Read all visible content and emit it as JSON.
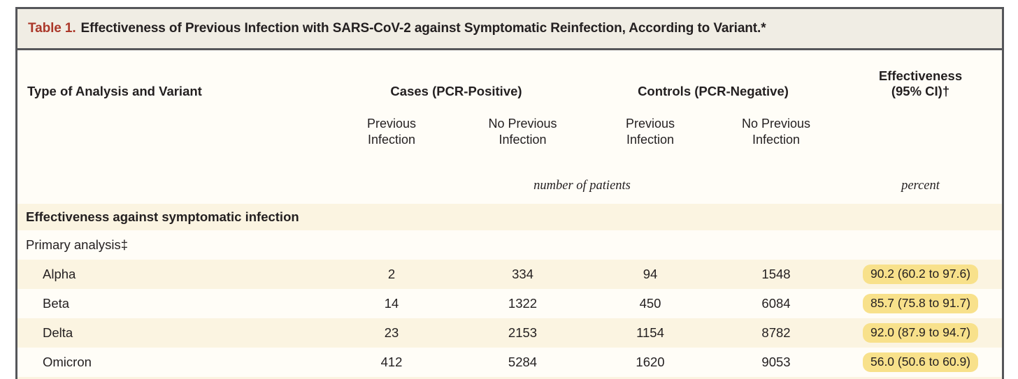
{
  "title": {
    "label": "Table 1.",
    "text": "Effectiveness of Previous Infection with SARS-CoV-2 against Symptomatic Reinfection, According to Variant.*"
  },
  "columns": {
    "analysis": "Type of Analysis and Variant",
    "cases_group": "Cases (PCR-Positive)",
    "controls_group": "Controls (PCR-Negative)",
    "effectiveness_line1": "Effectiveness",
    "effectiveness_line2": "(95% CI)†",
    "sub_cases_prev": "Previous Infection",
    "sub_cases_noprev": "No Previous Infection",
    "sub_controls_prev": "Previous Infection",
    "sub_controls_noprev": "No Previous Infection",
    "units_patients": "number of patients",
    "units_percent": "percent"
  },
  "section": {
    "header": "Effectiveness against symptomatic infection",
    "subsection": "Primary analysis‡"
  },
  "rows": [
    {
      "variant": "Alpha",
      "cases_prev": "2",
      "cases_noprev": "334",
      "controls_prev": "94",
      "controls_noprev": "1548",
      "effectiveness": "90.2 (60.2 to 97.6)"
    },
    {
      "variant": "Beta",
      "cases_prev": "14",
      "cases_noprev": "1322",
      "controls_prev": "450",
      "controls_noprev": "6084",
      "effectiveness": "85.7 (75.8 to 91.7)"
    },
    {
      "variant": "Delta",
      "cases_prev": "23",
      "cases_noprev": "2153",
      "controls_prev": "1154",
      "controls_noprev": "8782",
      "effectiveness": "92.0 (87.9 to 94.7)"
    },
    {
      "variant": "Omicron",
      "cases_prev": "412",
      "cases_noprev": "5284",
      "controls_prev": "1620",
      "controls_noprev": "9053",
      "effectiveness": "56.0 (50.6 to 60.9)"
    }
  ],
  "colors": {
    "title_label_red": "#ab382a",
    "title_bar_bg": "#f0ede4",
    "frame_border": "#55565a",
    "row_stripe": "#fbf4e1",
    "highlight_yellow": "#f8e18b",
    "text": "#231f20"
  }
}
